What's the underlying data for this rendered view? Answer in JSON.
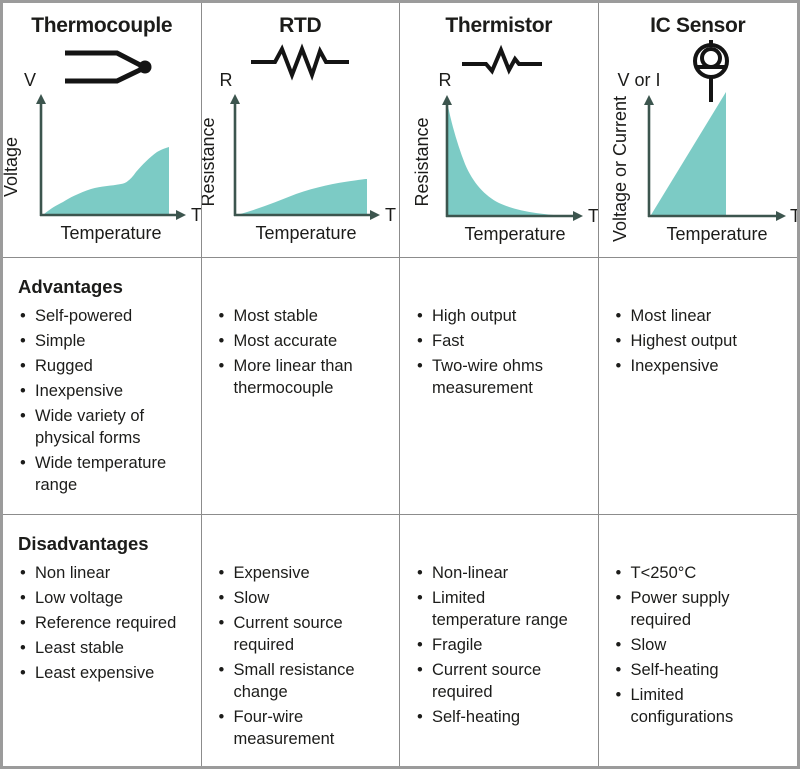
{
  "palette": {
    "curve_fill_teal": "#7ccbc5",
    "axis_dark_slate": "#3c554e",
    "grid_line": "#8c8c8c",
    "outer_border": "#9b9b9b",
    "text": "#1c1c1a"
  },
  "row_headings": {
    "advantages": "Advantages",
    "disadvantages": "Disadvantages"
  },
  "columns": [
    {
      "title": "Thermocouple",
      "symbol": "thermocouple-junction",
      "graph": {
        "y_top_label": "V",
        "y_axis_label": "Voltage",
        "x_axis_label": "Temperature",
        "x_end_label": "T",
        "trend": "irregular nonlinear rising curve"
      },
      "advantages": [
        "Self-powered",
        "Simple",
        "Rugged",
        "Inexpensive",
        "Wide variety of physical forms",
        "Wide temperature range"
      ],
      "disadvantages": [
        "Non linear",
        "Low voltage",
        "Reference required",
        "Least stable",
        "Least expensive"
      ]
    },
    {
      "title": "RTD",
      "symbol": "resistor",
      "graph": {
        "y_top_label": "R",
        "y_axis_label": "Resistance",
        "x_axis_label": "Temperature",
        "x_end_label": "T",
        "trend": "gradual rising, flattening"
      },
      "advantages": [
        "Most stable",
        "Most accurate",
        "More linear than thermocouple"
      ],
      "disadvantages": [
        "Expensive",
        "Slow",
        "Current source required",
        "Small resistance change",
        "Four-wire measurement"
      ]
    },
    {
      "title": "Thermistor",
      "symbol": "thermistor",
      "graph": {
        "y_top_label": "R",
        "y_axis_label": "Resistance",
        "x_axis_label": "Temperature",
        "x_end_label": "T",
        "trend": "exponential decay"
      },
      "advantages": [
        "High output",
        "Fast",
        "Two-wire ohms measurement"
      ],
      "disadvantages": [
        "Non-linear",
        "Limited temperature range",
        "Fragile",
        "Current source required",
        "Self-heating"
      ]
    },
    {
      "title": "IC Sensor",
      "symbol": "ic-current-source",
      "graph": {
        "y_top_label": "V or I",
        "y_axis_label": "Voltage or Current",
        "x_axis_label": "Temperature",
        "x_end_label": "T",
        "trend": "linear rising (triangle)"
      },
      "advantages": [
        "Most linear",
        "Highest output",
        "Inexpensive"
      ],
      "disadvantages": [
        "T<250°C",
        "Power supply required",
        "Slow",
        "Self-heating",
        "Limited configurations"
      ]
    }
  ]
}
